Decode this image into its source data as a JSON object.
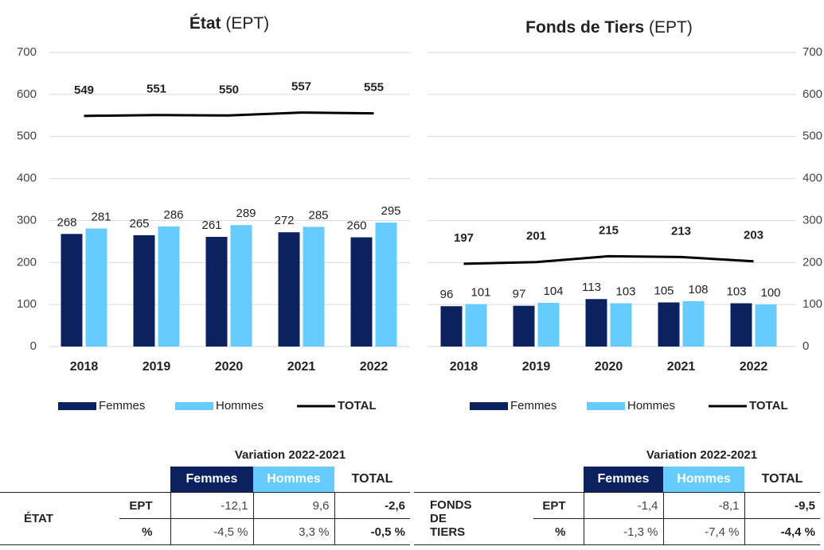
{
  "chart_data": [
    {
      "type": "bar",
      "title": "État",
      "subtitle": "(EPT)",
      "categories": [
        "2018",
        "2019",
        "2020",
        "2021",
        "2022"
      ],
      "series": [
        {
          "name": "Femmes",
          "type": "bar",
          "color": "#0c2260",
          "values": [
            268,
            265,
            261,
            272,
            260
          ]
        },
        {
          "name": "Hommes",
          "type": "bar",
          "color": "#66ccff",
          "values": [
            281,
            286,
            289,
            285,
            295
          ]
        },
        {
          "name": "TOTAL",
          "type": "line",
          "color": "#000000",
          "values": [
            549,
            551,
            550,
            557,
            555
          ]
        }
      ],
      "ylim": [
        0,
        700
      ],
      "yticks": [
        0,
        100,
        200,
        300,
        400,
        500,
        600,
        700
      ],
      "grid": true,
      "y_axis_side": "left",
      "legend": "bottom"
    },
    {
      "type": "bar",
      "title": "Fonds de Tiers",
      "subtitle": "(EPT)",
      "categories": [
        "2018",
        "2019",
        "2020",
        "2021",
        "2022"
      ],
      "series": [
        {
          "name": "Femmes",
          "type": "bar",
          "color": "#0c2260",
          "values": [
            96,
            97,
            113,
            105,
            103
          ]
        },
        {
          "name": "Hommes",
          "type": "bar",
          "color": "#66ccff",
          "values": [
            101,
            104,
            103,
            108,
            100
          ]
        },
        {
          "name": "TOTAL",
          "type": "line",
          "color": "#000000",
          "values": [
            197,
            201,
            215,
            213,
            203
          ]
        }
      ],
      "ylim": [
        0,
        700
      ],
      "yticks": [
        0,
        100,
        200,
        300,
        400,
        500,
        600,
        700
      ],
      "grid": true,
      "y_axis_side": "right",
      "legend": "bottom"
    }
  ],
  "tables": [
    {
      "title": "Variation 2022-2021",
      "columns": [
        "Femmes",
        "Hommes",
        "TOTAL"
      ],
      "group": "ÉTAT",
      "rows": [
        {
          "label": "EPT",
          "values": [
            "-12,1",
            "9,6",
            "-2,6"
          ]
        },
        {
          "label": "%",
          "values": [
            "-4,5 %",
            "3,3 %",
            "-0,5 %"
          ]
        }
      ]
    },
    {
      "title": "Variation 2022-2021",
      "columns": [
        "Femmes",
        "Hommes",
        "TOTAL"
      ],
      "group": "FONDS DE TIERS",
      "rows": [
        {
          "label": "EPT",
          "values": [
            "-1,4",
            "-8,1",
            "-9,5"
          ]
        },
        {
          "label": "%",
          "values": [
            "-1,3 %",
            "-7,4 %",
            "-4,4 %"
          ]
        }
      ]
    }
  ]
}
